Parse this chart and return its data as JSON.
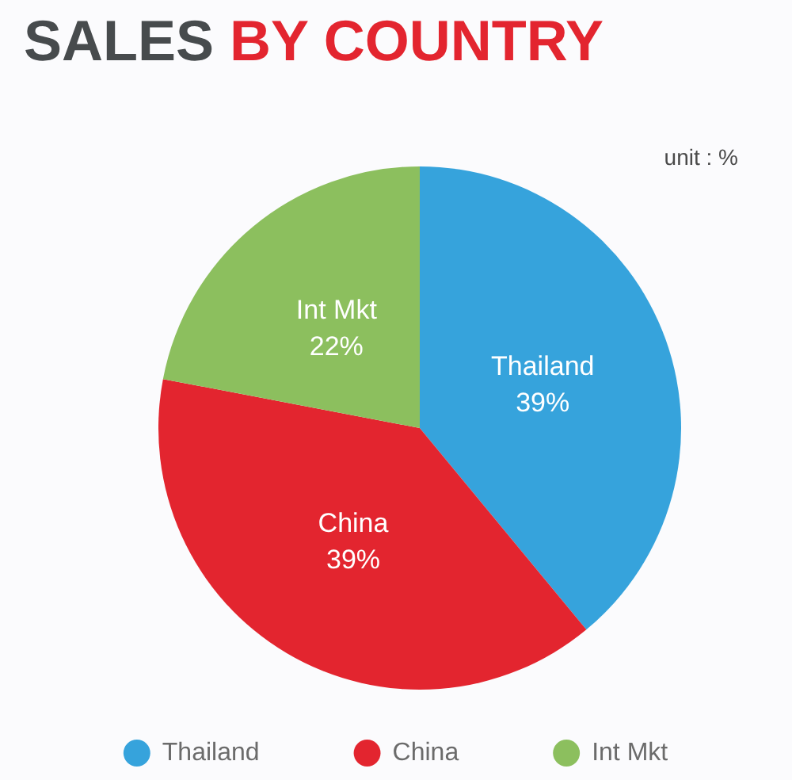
{
  "chart_data": {
    "type": "pie",
    "title": "SALES BY COUNTRY",
    "annotations": [
      "unit : %"
    ],
    "categories": [
      "Thailand",
      "China",
      "Int Mkt"
    ],
    "values": [
      39,
      39,
      22
    ],
    "colors": [
      "#36a3dc",
      "#e3252f",
      "#8cbf5e"
    ],
    "value_labels": [
      "39%",
      "39%",
      "22%"
    ],
    "legend": "bottom"
  }
}
